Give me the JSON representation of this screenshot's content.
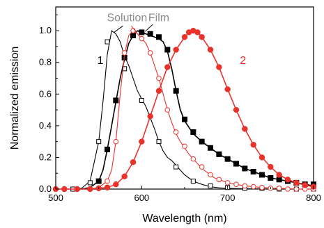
{
  "chart_data": {
    "type": "line",
    "xlabel": "Wavelength (nm)",
    "ylabel": "Normalized emission",
    "xlim": [
      500,
      800
    ],
    "ylim": [
      0,
      1.15
    ],
    "xticks": [
      "500",
      "600",
      "700",
      "800"
    ],
    "yticks": [
      "0.0",
      "0.2",
      "0.4",
      "0.6",
      "0.8",
      "1.0"
    ],
    "xtick_values": [
      500,
      600,
      700,
      800
    ],
    "ytick_values": [
      0,
      0.2,
      0.4,
      0.6,
      0.8,
      1.0
    ],
    "grid": false,
    "annotations": [
      {
        "text": "Solution",
        "x": 583,
        "y": 1.06,
        "color": "#8c8c8c",
        "anchor": "middle"
      },
      {
        "text": "Film",
        "x": 620,
        "y": 1.06,
        "color": "#8c8c8c",
        "anchor": "middle"
      },
      {
        "text": "1",
        "x": 552,
        "y": 0.79,
        "color": "#000000",
        "anchor": "middle"
      },
      {
        "text": "2",
        "x": 718,
        "y": 0.79,
        "color": "#e8322b",
        "anchor": "middle"
      }
    ],
    "series": [
      {
        "compound": "1",
        "state": "Solution",
        "color": "#000000",
        "marker": "square-open",
        "points": [
          [
            490,
            0
          ],
          [
            500,
            0
          ],
          [
            510,
            0
          ],
          [
            520,
            0
          ],
          [
            530,
            0.005
          ],
          [
            540,
            0.05
          ],
          [
            550,
            0.3
          ],
          [
            555,
            0.55
          ],
          [
            560,
            0.85
          ],
          [
            565,
            1.0
          ],
          [
            570,
            0.98
          ],
          [
            575,
            0.93
          ],
          [
            580,
            0.84
          ],
          [
            585,
            0.78
          ],
          [
            590,
            0.7
          ],
          [
            595,
            0.62
          ],
          [
            600,
            0.57
          ],
          [
            605,
            0.52
          ],
          [
            610,
            0.45
          ],
          [
            615,
            0.38
          ],
          [
            620,
            0.3
          ],
          [
            625,
            0.24
          ],
          [
            630,
            0.2
          ],
          [
            635,
            0.18
          ],
          [
            640,
            0.15
          ],
          [
            645,
            0.12
          ],
          [
            650,
            0.09
          ],
          [
            655,
            0.07
          ],
          [
            660,
            0.05
          ],
          [
            670,
            0.03
          ],
          [
            680,
            0.015
          ],
          [
            690,
            0.008
          ],
          [
            700,
            0.005
          ],
          [
            720,
            0.002
          ],
          [
            750,
            0
          ],
          [
            800,
            0
          ]
        ],
        "markers": [
          [
            520,
            0
          ],
          [
            540,
            0.04
          ],
          [
            550,
            0.3
          ],
          [
            560,
            0.93
          ],
          [
            580,
            0.76
          ],
          [
            600,
            0.56
          ],
          [
            620,
            0.3
          ],
          [
            640,
            0.14
          ],
          [
            660,
            0.05
          ],
          [
            680,
            0.02
          ],
          [
            700,
            0.01
          ],
          [
            720,
            0.005
          ],
          [
            740,
            0.005
          ],
          [
            760,
            0
          ],
          [
            780,
            0
          ],
          [
            800,
            0
          ]
        ]
      },
      {
        "compound": "1",
        "state": "Film",
        "color": "#000000",
        "marker": "square-filled",
        "points": [
          [
            530,
            0
          ],
          [
            540,
            0.01
          ],
          [
            550,
            0.05
          ],
          [
            555,
            0.12
          ],
          [
            560,
            0.25
          ],
          [
            565,
            0.4
          ],
          [
            570,
            0.55
          ],
          [
            575,
            0.7
          ],
          [
            580,
            0.82
          ],
          [
            585,
            0.92
          ],
          [
            590,
            0.97
          ],
          [
            595,
            1.0
          ],
          [
            600,
            0.99
          ],
          [
            605,
            0.98
          ],
          [
            610,
            0.97
          ],
          [
            615,
            0.96
          ],
          [
            620,
            0.95
          ],
          [
            625,
            0.93
          ],
          [
            630,
            0.87
          ],
          [
            635,
            0.76
          ],
          [
            640,
            0.62
          ],
          [
            645,
            0.5
          ],
          [
            650,
            0.43
          ],
          [
            660,
            0.35
          ],
          [
            670,
            0.3
          ],
          [
            680,
            0.26
          ],
          [
            690,
            0.22
          ],
          [
            700,
            0.19
          ],
          [
            710,
            0.16
          ],
          [
            720,
            0.13
          ],
          [
            730,
            0.11
          ],
          [
            740,
            0.09
          ],
          [
            750,
            0.07
          ],
          [
            760,
            0.06
          ],
          [
            770,
            0.05
          ],
          [
            780,
            0.04
          ],
          [
            790,
            0.03
          ],
          [
            800,
            0.02
          ]
        ],
        "markers": [
          [
            550,
            0.05
          ],
          [
            560,
            0.25
          ],
          [
            570,
            0.56
          ],
          [
            580,
            0.83
          ],
          [
            590,
            0.97
          ],
          [
            600,
            0.99
          ],
          [
            610,
            0.98
          ],
          [
            620,
            0.96
          ],
          [
            630,
            0.88
          ],
          [
            640,
            0.62
          ],
          [
            650,
            0.44
          ],
          [
            660,
            0.36
          ],
          [
            670,
            0.3
          ],
          [
            680,
            0.26
          ],
          [
            690,
            0.22
          ],
          [
            700,
            0.19
          ],
          [
            710,
            0.16
          ],
          [
            720,
            0.13
          ],
          [
            730,
            0.11
          ],
          [
            740,
            0.09
          ],
          [
            750,
            0.07
          ],
          [
            760,
            0.06
          ],
          [
            770,
            0.05
          ],
          [
            780,
            0.04
          ],
          [
            790,
            0.03
          ],
          [
            800,
            0.03
          ]
        ]
      },
      {
        "compound": "2",
        "state": "Solution",
        "color": "#e8322b",
        "marker": "circle-open",
        "points": [
          [
            490,
            0
          ],
          [
            500,
            0
          ],
          [
            520,
            0
          ],
          [
            540,
            0
          ],
          [
            550,
            0.01
          ],
          [
            560,
            0.05
          ],
          [
            565,
            0.12
          ],
          [
            570,
            0.3
          ],
          [
            575,
            0.6
          ],
          [
            580,
            0.85
          ],
          [
            585,
            0.97
          ],
          [
            590,
            1.0
          ],
          [
            595,
            0.98
          ],
          [
            600,
            0.95
          ],
          [
            605,
            0.92
          ],
          [
            610,
            0.86
          ],
          [
            615,
            0.78
          ],
          [
            620,
            0.7
          ],
          [
            625,
            0.6
          ],
          [
            630,
            0.5
          ],
          [
            635,
            0.42
          ],
          [
            640,
            0.35
          ],
          [
            645,
            0.3
          ],
          [
            650,
            0.26
          ],
          [
            655,
            0.22
          ],
          [
            660,
            0.19
          ],
          [
            665,
            0.16
          ],
          [
            670,
            0.13
          ],
          [
            675,
            0.11
          ],
          [
            680,
            0.09
          ],
          [
            685,
            0.07
          ],
          [
            690,
            0.06
          ],
          [
            700,
            0.04
          ],
          [
            710,
            0.03
          ],
          [
            720,
            0.02
          ],
          [
            730,
            0.015
          ],
          [
            740,
            0.01
          ],
          [
            760,
            0.005
          ],
          [
            780,
            0
          ],
          [
            800,
            0
          ]
        ],
        "markers": [
          [
            560,
            0.05
          ],
          [
            570,
            0.3
          ],
          [
            580,
            0.86
          ],
          [
            590,
            1.0
          ],
          [
            600,
            0.95
          ],
          [
            610,
            0.86
          ],
          [
            620,
            0.7
          ],
          [
            630,
            0.5
          ],
          [
            640,
            0.36
          ],
          [
            650,
            0.27
          ],
          [
            660,
            0.19
          ],
          [
            670,
            0.14
          ],
          [
            680,
            0.09
          ],
          [
            690,
            0.06
          ],
          [
            700,
            0.04
          ],
          [
            710,
            0.03
          ],
          [
            720,
            0.02
          ],
          [
            730,
            0.015
          ],
          [
            740,
            0.01
          ],
          [
            750,
            0.005
          ],
          [
            760,
            0.005
          ],
          [
            770,
            0
          ],
          [
            780,
            0
          ],
          [
            790,
            0
          ],
          [
            800,
            0
          ]
        ]
      },
      {
        "compound": "2",
        "state": "Film",
        "color": "#e8322b",
        "marker": "circle-filled",
        "points": [
          [
            490,
            0
          ],
          [
            500,
            0
          ],
          [
            520,
            0
          ],
          [
            540,
            0
          ],
          [
            560,
            0.01
          ],
          [
            570,
            0.03
          ],
          [
            580,
            0.08
          ],
          [
            590,
            0.17
          ],
          [
            600,
            0.3
          ],
          [
            610,
            0.46
          ],
          [
            620,
            0.62
          ],
          [
            630,
            0.77
          ],
          [
            640,
            0.88
          ],
          [
            650,
            0.96
          ],
          [
            655,
            0.99
          ],
          [
            660,
            1.0
          ],
          [
            665,
            0.99
          ],
          [
            670,
            0.96
          ],
          [
            680,
            0.88
          ],
          [
            690,
            0.77
          ],
          [
            700,
            0.63
          ],
          [
            710,
            0.5
          ],
          [
            720,
            0.38
          ],
          [
            730,
            0.28
          ],
          [
            740,
            0.2
          ],
          [
            750,
            0.14
          ],
          [
            760,
            0.09
          ],
          [
            770,
            0.06
          ],
          [
            780,
            0.04
          ],
          [
            790,
            0.025
          ],
          [
            800,
            0.015
          ]
        ],
        "markers": [
          [
            495,
            0
          ],
          [
            510,
            0
          ],
          [
            525,
            0
          ],
          [
            540,
            0
          ],
          [
            550,
            0.005
          ],
          [
            560,
            0.01
          ],
          [
            570,
            0.03
          ],
          [
            580,
            0.08
          ],
          [
            590,
            0.17
          ],
          [
            600,
            0.3
          ],
          [
            610,
            0.46
          ],
          [
            620,
            0.62
          ],
          [
            630,
            0.77
          ],
          [
            640,
            0.88
          ],
          [
            650,
            0.96
          ],
          [
            655,
            0.99
          ],
          [
            660,
            1.0
          ],
          [
            665,
            0.99
          ],
          [
            670,
            0.96
          ],
          [
            680,
            0.88
          ],
          [
            690,
            0.77
          ],
          [
            700,
            0.63
          ],
          [
            710,
            0.5
          ],
          [
            720,
            0.38
          ],
          [
            730,
            0.28
          ],
          [
            740,
            0.2
          ],
          [
            750,
            0.14
          ],
          [
            760,
            0.09
          ],
          [
            770,
            0.06
          ],
          [
            780,
            0.04
          ],
          [
            790,
            0.025
          ],
          [
            800,
            0.015
          ]
        ]
      }
    ]
  }
}
